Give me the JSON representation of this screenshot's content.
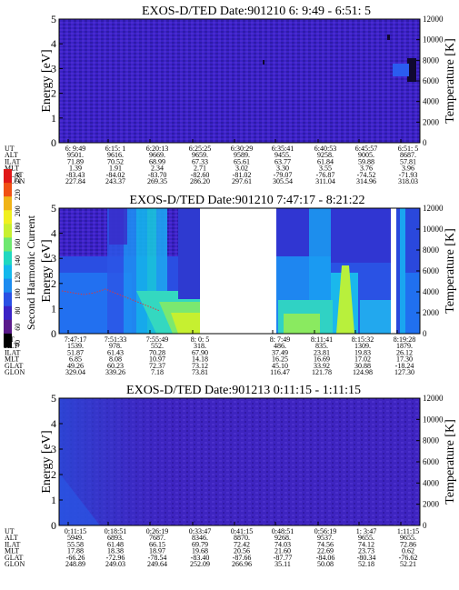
{
  "chart_data": [
    {
      "type": "heatmap",
      "title": "EXOS-D/TED   Date:901210  6: 9:49 - 6:51: 5",
      "ylabel": "Energy [eV]",
      "y2label": "Temperature [K]",
      "ylim": [
        0,
        5
      ],
      "y_ticks": [
        "0",
        "1",
        "2",
        "3",
        "4",
        "5"
      ],
      "y2lim": [
        0,
        12000
      ],
      "y2_ticks": [
        "0",
        "2000",
        "4000",
        "6000",
        "8000",
        "10000",
        "12000"
      ],
      "orbit_table": {
        "rows": [
          {
            "label": "UT",
            "values": [
              "6: 9:49",
              "6:15: 1",
              "6:20:13",
              "6:25:25",
              "6:30:29",
              "6:35:41",
              "6:40:53",
              "6:45:57",
              "6:51: 5"
            ]
          },
          {
            "label": "ALT",
            "values": [
              "9501.",
              "9616.",
              "9669.",
              "9659.",
              "9589.",
              "9455.",
              "9258.",
              "9005.",
              "8687."
            ]
          },
          {
            "label": "ILAT",
            "values": [
              "71.89",
              "70.52",
              "68.99",
              "67.33",
              "65.61",
              "63.77",
              "61.84",
              "59.88",
              "57.81"
            ]
          },
          {
            "label": "MLT",
            "values": [
              "1.39",
              "1.91",
              "2.34",
              "2.71",
              "3.02",
              "3.30",
              "3.55",
              "3.76",
              "3.96"
            ]
          },
          {
            "label": "GLAT",
            "values": [
              "-83.43",
              "-84.02",
              "-83.70",
              "-82.60",
              "-81.02",
              "-79.07",
              "-76.87",
              "-74.52",
              "-71.93"
            ]
          },
          {
            "label": "GLON",
            "values": [
              "227.84",
              "243.37",
              "269.35",
              "286.20",
              "297.61",
              "305.54",
              "311.04",
              "314.96",
              "318.03"
            ]
          }
        ]
      }
    },
    {
      "type": "heatmap",
      "title": "EXOS-D/TED   Date:901210  7:47:17 - 8:21:22",
      "ylabel": "Energy [eV]",
      "y2label": "Temperature [K]",
      "ylim": [
        0,
        5
      ],
      "y_ticks": [
        "0",
        "1",
        "2",
        "3",
        "4",
        "5"
      ],
      "y2lim": [
        0,
        12000
      ],
      "y2_ticks": [
        "0",
        "2000",
        "4000",
        "6000",
        "8000",
        "10000",
        "12000"
      ],
      "colorbar": {
        "label": "Second Harmonic Current",
        "ticks": [
          "40",
          "60",
          "80",
          "100",
          "120",
          "140",
          "160",
          "180",
          "200",
          "220",
          "250"
        ]
      },
      "orbit_table": {
        "rows": [
          {
            "label": "UT",
            "values": [
              "7:47:17",
              "7:51:33",
              "7:55:49",
              "8: 0: 5",
              "8: 7:49",
              "8:11:41",
              "8:15:32",
              "8:19:28"
            ]
          },
          {
            "label": "ALT",
            "values": [
              "1539.",
              "978.",
              "552.",
              "318.",
              "486.",
              "835.",
              "1309.",
              "1879."
            ]
          },
          {
            "label": "ILAT",
            "values": [
              "51.87",
              "61.43",
              "70.28",
              "67.90",
              "37.49",
              "23.81",
              "19.83",
              "26.12"
            ]
          },
          {
            "label": "MLT",
            "values": [
              "6.85",
              "8.08",
              "10.97",
              "14.18",
              "16.25",
              "16.69",
              "17.02",
              "17.30"
            ]
          },
          {
            "label": "GLAT",
            "values": [
              "49.26",
              "60.23",
              "72.37",
              "73.12",
              "45.10",
              "33.92",
              "30.88",
              "-18.24"
            ]
          },
          {
            "label": "GLON",
            "values": [
              "329.04",
              "339.26",
              "7.18",
              "73.81",
              "116.47",
              "121.78",
              "124.98",
              "127.30"
            ]
          }
        ]
      }
    },
    {
      "type": "heatmap",
      "title": "EXOS-D/TED   Date:901213  0:11:15 - 1:11:15",
      "ylabel": "Energy [eV]",
      "y2label": "Temperature [K]",
      "ylim": [
        0,
        5
      ],
      "y_ticks": [
        "0",
        "1",
        "2",
        "3",
        "4",
        "5"
      ],
      "y2lim": [
        0,
        12000
      ],
      "y2_ticks": [
        "0",
        "2000",
        "4000",
        "6000",
        "8000",
        "10000",
        "12000"
      ],
      "orbit_table": {
        "rows": [
          {
            "label": "UT",
            "values": [
              "0:11:15",
              "0:18:51",
              "0:26:19",
              "0:33:47",
              "0:41:15",
              "0:48:51",
              "0:56:19",
              "1: 3:47",
              "1:11:15"
            ]
          },
          {
            "label": "ALT",
            "values": [
              "5949.",
              "6893.",
              "7687.",
              "8346.",
              "8870.",
              "9268.",
              "9537.",
              "9655.",
              "9655."
            ]
          },
          {
            "label": "ILAT",
            "values": [
              "55.58",
              "61.48",
              "66.15",
              "69.79",
              "72.42",
              "74.03",
              "74.56",
              "74.12",
              "72.86"
            ]
          },
          {
            "label": "MLT",
            "values": [
              "17.88",
              "18.38",
              "18.97",
              "19.68",
              "20.56",
              "21.60",
              "22.69",
              "23.73",
              "0.62"
            ]
          },
          {
            "label": "GLAT",
            "values": [
              "-66.26",
              "-72.96",
              "-78.54",
              "-83.40",
              "-87.66",
              "-87.77",
              "-84.06",
              "-80.34",
              "-76.62"
            ]
          },
          {
            "label": "GLON",
            "values": [
              "248.89",
              "249.03",
              "249.64",
              "252.09",
              "266.96",
              "35.11",
              "50.08",
              "52.18",
              "52.21"
            ]
          }
        ]
      }
    }
  ],
  "colors": {
    "background": "#3a1ab8",
    "panel_uniform": "#3b20c4"
  }
}
